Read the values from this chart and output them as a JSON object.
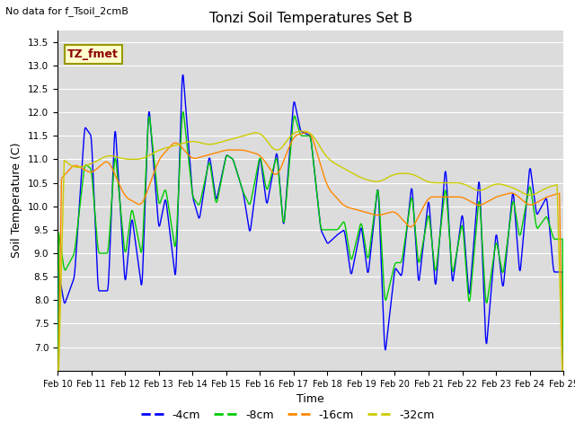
{
  "title": "Tonzi Soil Temperatures Set B",
  "xlabel": "Time",
  "ylabel": "Soil Temperature (C)",
  "top_left_note": "No data for f_Tsoil_2cmB",
  "legend_label_box": "TZ_fmet",
  "ylim": [
    6.5,
    13.75
  ],
  "yticks": [
    7.0,
    7.5,
    8.0,
    8.5,
    9.0,
    9.5,
    10.0,
    10.5,
    11.0,
    11.5,
    12.0,
    12.5,
    13.0,
    13.5
  ],
  "xtick_labels": [
    "Feb 10",
    "Feb 11",
    "Feb 12",
    "Feb 13",
    "Feb 14",
    "Feb 15",
    "Feb 16",
    "Feb 17",
    "Feb 18",
    "Feb 19",
    "Feb 20",
    "Feb 21",
    "Feb 22",
    "Feb 23",
    "Feb 24",
    "Feb 25"
  ],
  "colors": {
    "4cm": "#0000ff",
    "8cm": "#00cc00",
    "16cm": "#ff8800",
    "32cm": "#cccc00"
  },
  "legend_entries": [
    "-4cm",
    "-8cm",
    "-16cm",
    "-32cm"
  ],
  "plot_bg_color": "#dcdcdc",
  "grid_color": "#ffffff"
}
